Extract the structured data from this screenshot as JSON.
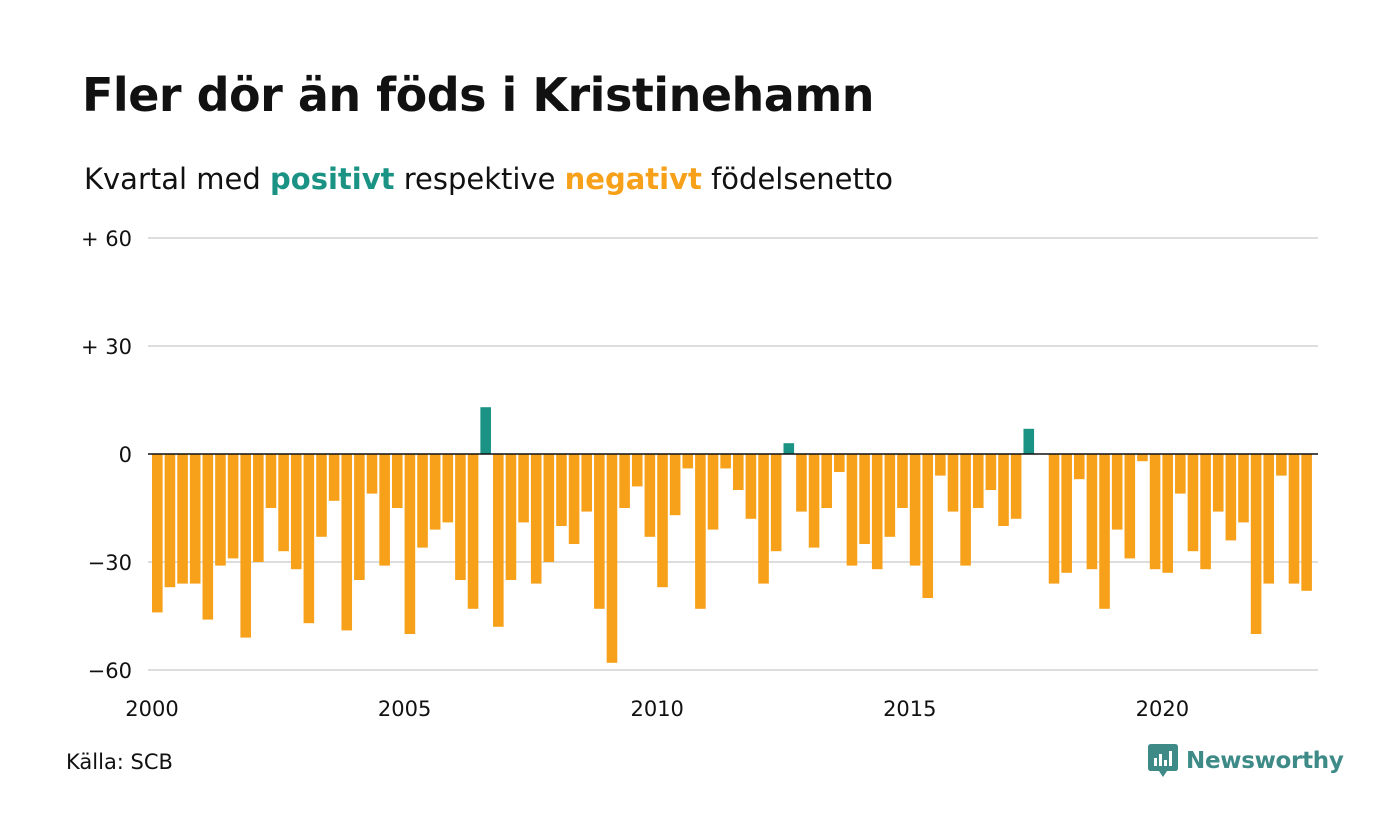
{
  "colors": {
    "positive": "#1a9384",
    "negative": "#f7a11a",
    "grid": "#dddddd",
    "text": "#111111",
    "brand": "#3d8a86"
  },
  "header": {
    "title": "Fler dör än föds i Kristinehamn",
    "subtitle_prefix": "Kvartal med ",
    "subtitle_positive": "positivt",
    "subtitle_middle": " respektive ",
    "subtitle_negative": "negativt",
    "subtitle_suffix": " födelsenetto"
  },
  "footer": {
    "source": "Källa: SCB",
    "brand_name": "Newsworthy",
    "brand_icon": "newsworthy-logo-icon"
  },
  "chart_data": {
    "type": "bar",
    "xlabel": "",
    "ylabel": "",
    "ylim": [
      -60,
      60
    ],
    "y_ticks": [
      60,
      30,
      0,
      -30,
      -60
    ],
    "y_tick_labels": [
      "+ 60",
      "+ 30",
      "0",
      "−30",
      "−60"
    ],
    "x_ticks": [
      2000,
      2005,
      2010,
      2015,
      2020
    ],
    "x_tick_labels": [
      "2000",
      "2005",
      "2010",
      "2015",
      "2020"
    ],
    "start_year": 2000,
    "grid": true,
    "series": [
      {
        "values": [
          -44,
          -37,
          -36,
          -36,
          -46,
          -31,
          -29,
          -51,
          -30,
          -15,
          -27,
          -32,
          -47,
          -23,
          -13,
          -49,
          -35,
          -11,
          -31,
          -15,
          -50,
          -26,
          -21,
          -19,
          -35,
          -43,
          13,
          -48,
          -35,
          -19,
          -36,
          -30,
          -20,
          -25,
          -16,
          -43,
          -58,
          -15,
          -9,
          -23,
          -37,
          -17,
          -4,
          -43,
          -21,
          -4,
          -10,
          -18,
          -36,
          -27,
          3,
          -16,
          -26,
          -15,
          -5,
          -31,
          -25,
          -32,
          -23,
          -15,
          -31,
          -40,
          -6,
          -16,
          -31,
          -15,
          -10,
          -20,
          -18,
          7,
          0,
          -36,
          -33,
          -7,
          -32,
          -43,
          -21,
          -29,
          -2,
          -32,
          -33,
          -11,
          -27,
          -32,
          -16,
          -24,
          -19,
          -50,
          -36,
          -6,
          -36,
          -38
        ]
      }
    ]
  }
}
